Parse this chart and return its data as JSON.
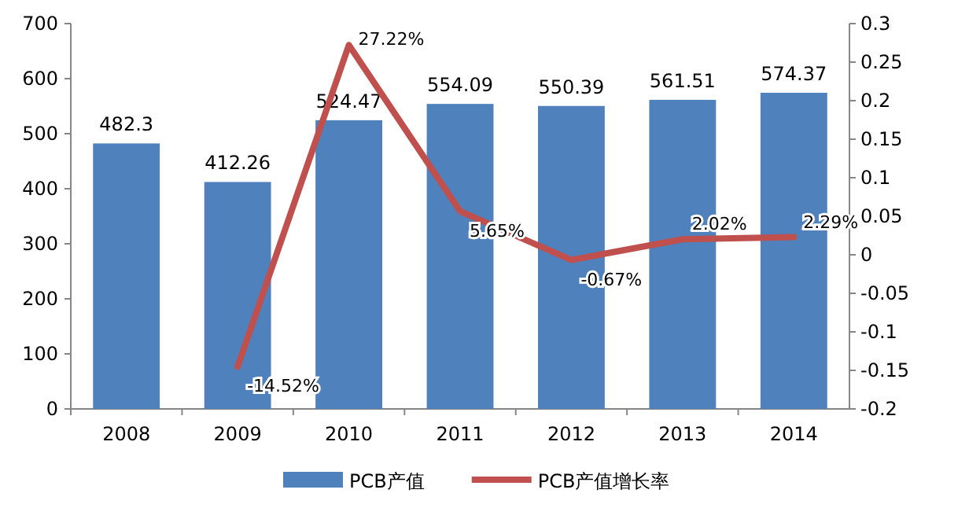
{
  "chart_data": {
    "type": "bar",
    "categories": [
      "2008",
      "2009",
      "2010",
      "2011",
      "2012",
      "2013",
      "2014"
    ],
    "series": [
      {
        "name": "PCB产值",
        "color": "#4f81bd",
        "values": [
          482.3,
          412.26,
          524.47,
          554.09,
          550.39,
          561.51,
          574.37
        ],
        "value_labels": [
          "482.3",
          "412.26",
          "524.47",
          "554.09",
          "550.39",
          "561.51",
          "574.37"
        ]
      },
      {
        "name": "PCB产值增长率",
        "type": "line",
        "axis": "y2",
        "color": "#c0504d",
        "values": [
          null,
          -0.1452,
          0.2722,
          0.0565,
          -0.0067,
          0.0202,
          0.0229
        ],
        "value_labels": [
          null,
          "-14.52%",
          "27.22%",
          "5.65%",
          "-0.67%",
          "2.02%",
          "2.29%"
        ]
      }
    ],
    "ylim": [
      0,
      700
    ],
    "yticks": [
      0,
      100,
      200,
      300,
      400,
      500,
      600,
      700
    ],
    "y2lim": [
      -0.2,
      0.3
    ],
    "y2ticks": [
      -0.2,
      -0.15,
      -0.1,
      -0.05,
      0,
      0.05,
      0.1,
      0.15,
      0.2,
      0.25,
      0.3
    ],
    "legend": "bottom",
    "grid": false
  }
}
